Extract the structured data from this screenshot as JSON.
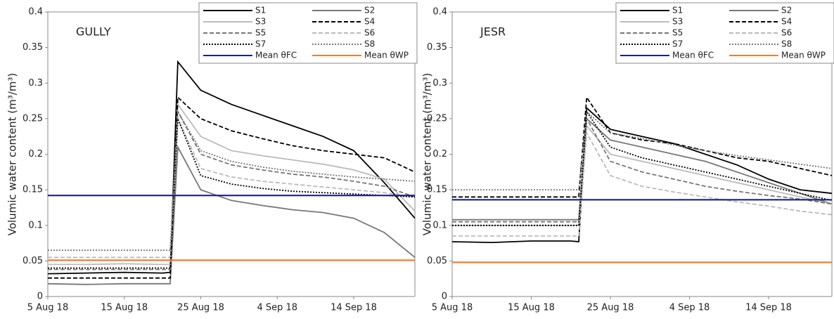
{
  "chart_data": [
    {
      "type": "line",
      "annotation": "GULLY",
      "y_label": "Volumic water content (m³/m³)",
      "x": [
        "2018-08-05",
        "2018-08-10",
        "2018-08-15",
        "2018-08-20",
        "2018-08-21",
        "2018-08-22",
        "2018-08-25",
        "2018-08-29",
        "2018-09-02",
        "2018-09-06",
        "2018-09-10",
        "2018-09-14",
        "2018-09-18",
        "2018-09-22"
      ],
      "xlim": [
        "2018-08-05",
        "2018-09-22"
      ],
      "xticks": [
        {
          "value": "2018-08-05",
          "label": "5 Aug 18"
        },
        {
          "value": "2018-08-15",
          "label": "15 Aug 18"
        },
        {
          "value": "2018-08-25",
          "label": "25 Aug 18"
        },
        {
          "value": "2018-09-04",
          "label": "4 Sep 18"
        },
        {
          "value": "2018-09-14",
          "label": "14 Sep 18"
        }
      ],
      "ylim": [
        0,
        0.4
      ],
      "yticks": [
        0,
        0.05,
        0.1,
        0.15,
        0.2,
        0.25,
        0.3,
        0.35,
        0.4
      ],
      "legend": "upper right",
      "series": [
        {
          "name": "S1",
          "color": "#000000",
          "style": "solid",
          "values": [
            0.032,
            0.033,
            0.034,
            0.033,
            0.034,
            0.33,
            0.29,
            0.27,
            0.255,
            0.24,
            0.225,
            0.205,
            0.16,
            0.11
          ]
        },
        {
          "name": "S2",
          "color": "#777777",
          "style": "solid",
          "values": [
            0.018,
            0.017,
            0.018,
            0.018,
            0.018,
            0.21,
            0.15,
            0.135,
            0.128,
            0.122,
            0.118,
            0.11,
            0.09,
            0.055
          ]
        },
        {
          "name": "S3",
          "color": "#bbbbbb",
          "style": "solid",
          "values": [
            0.045,
            0.045,
            0.046,
            0.045,
            0.045,
            0.27,
            0.225,
            0.205,
            0.198,
            0.192,
            0.186,
            0.178,
            0.165,
            0.12
          ]
        },
        {
          "name": "S4",
          "color": "#000000",
          "style": "dashed",
          "values": [
            0.026,
            0.026,
            0.026,
            0.026,
            0.026,
            0.28,
            0.25,
            0.233,
            0.222,
            0.212,
            0.205,
            0.2,
            0.195,
            0.175
          ]
        },
        {
          "name": "S5",
          "color": "#777777",
          "style": "dashed",
          "values": [
            0.038,
            0.038,
            0.038,
            0.038,
            0.038,
            0.26,
            0.2,
            0.185,
            0.178,
            0.172,
            0.168,
            0.162,
            0.155,
            0.14
          ]
        },
        {
          "name": "S6",
          "color": "#bbbbbb",
          "style": "dashed",
          "values": [
            0.055,
            0.055,
            0.055,
            0.055,
            0.055,
            0.25,
            0.18,
            0.168,
            0.162,
            0.158,
            0.154,
            0.15,
            0.146,
            0.14
          ]
        },
        {
          "name": "S7",
          "color": "#000000",
          "style": "dotted",
          "values": [
            0.04,
            0.04,
            0.04,
            0.04,
            0.04,
            0.25,
            0.17,
            0.158,
            0.152,
            0.148,
            0.146,
            0.144,
            0.142,
            0.14
          ]
        },
        {
          "name": "S8",
          "color": "#777777",
          "style": "dotted",
          "values": [
            0.065,
            0.065,
            0.065,
            0.065,
            0.065,
            0.26,
            0.205,
            0.19,
            0.182,
            0.176,
            0.172,
            0.168,
            0.165,
            0.162
          ]
        },
        {
          "name": "Mean θFC",
          "color": "#1a237e",
          "style": "solid",
          "values": [
            0.142,
            0.142,
            0.142,
            0.142,
            0.142,
            0.142,
            0.142,
            0.142,
            0.142,
            0.142,
            0.142,
            0.142,
            0.142,
            0.142
          ]
        },
        {
          "name": "Mean θWP",
          "color": "#f57c2a",
          "style": "solid",
          "values": [
            0.051,
            0.051,
            0.051,
            0.051,
            0.051,
            0.051,
            0.051,
            0.051,
            0.051,
            0.051,
            0.051,
            0.051,
            0.051,
            0.051
          ]
        }
      ]
    },
    {
      "type": "line",
      "annotation": "JESR",
      "y_label": "Volumic water content (m³/m³)",
      "x": [
        "2018-08-05",
        "2018-08-10",
        "2018-08-15",
        "2018-08-20",
        "2018-08-21",
        "2018-08-22",
        "2018-08-25",
        "2018-08-29",
        "2018-09-02",
        "2018-09-06",
        "2018-09-10",
        "2018-09-14",
        "2018-09-18",
        "2018-09-22"
      ],
      "xlim": [
        "2018-08-05",
        "2018-09-22"
      ],
      "xticks": [
        {
          "value": "2018-08-05",
          "label": "5 Aug 18"
        },
        {
          "value": "2018-08-15",
          "label": "15 Aug 18"
        },
        {
          "value": "2018-08-25",
          "label": "25 Aug 18"
        },
        {
          "value": "2018-09-04",
          "label": "4 Sep 18"
        },
        {
          "value": "2018-09-14",
          "label": "14 Sep 18"
        }
      ],
      "ylim": [
        0,
        0.4
      ],
      "yticks": [
        0,
        0.05,
        0.1,
        0.15,
        0.2,
        0.25,
        0.3,
        0.35,
        0.4
      ],
      "legend": "upper right",
      "series": [
        {
          "name": "S1",
          "color": "#000000",
          "style": "solid",
          "values": [
            0.077,
            0.076,
            0.078,
            0.078,
            0.077,
            0.265,
            0.235,
            0.225,
            0.215,
            0.2,
            0.185,
            0.165,
            0.15,
            0.145
          ]
        },
        {
          "name": "S2",
          "color": "#777777",
          "style": "solid",
          "values": [
            0.108,
            0.108,
            0.108,
            0.108,
            0.108,
            0.25,
            0.22,
            0.21,
            0.2,
            0.19,
            0.175,
            0.16,
            0.145,
            0.13
          ]
        },
        {
          "name": "S3",
          "color": "#bbbbbb",
          "style": "solid",
          "values": [
            0.1,
            0.1,
            0.1,
            0.1,
            0.1,
            0.24,
            0.2,
            0.19,
            0.18,
            0.17,
            0.16,
            0.15,
            0.14,
            0.13
          ]
        },
        {
          "name": "S4",
          "color": "#000000",
          "style": "dashed",
          "values": [
            0.14,
            0.14,
            0.14,
            0.14,
            0.14,
            0.28,
            0.23,
            0.22,
            0.215,
            0.205,
            0.195,
            0.19,
            0.18,
            0.17
          ]
        },
        {
          "name": "S5",
          "color": "#777777",
          "style": "dashed",
          "values": [
            0.105,
            0.105,
            0.105,
            0.105,
            0.105,
            0.25,
            0.19,
            0.175,
            0.165,
            0.155,
            0.148,
            0.142,
            0.137,
            0.13
          ]
        },
        {
          "name": "S6",
          "color": "#bbbbbb",
          "style": "dashed",
          "values": [
            0.085,
            0.085,
            0.085,
            0.085,
            0.085,
            0.23,
            0.17,
            0.155,
            0.147,
            0.14,
            0.133,
            0.127,
            0.12,
            0.115
          ]
        },
        {
          "name": "S7",
          "color": "#000000",
          "style": "dotted",
          "values": [
            0.1,
            0.1,
            0.1,
            0.1,
            0.1,
            0.26,
            0.21,
            0.195,
            0.185,
            0.175,
            0.165,
            0.155,
            0.145,
            0.135
          ]
        },
        {
          "name": "S8",
          "color": "#777777",
          "style": "dotted",
          "values": [
            0.15,
            0.15,
            0.15,
            0.15,
            0.15,
            0.26,
            0.23,
            0.222,
            0.213,
            0.205,
            0.198,
            0.192,
            0.186,
            0.18
          ]
        },
        {
          "name": "Mean θFC",
          "color": "#1a237e",
          "style": "solid",
          "values": [
            0.136,
            0.136,
            0.136,
            0.136,
            0.136,
            0.136,
            0.136,
            0.136,
            0.136,
            0.136,
            0.136,
            0.136,
            0.136,
            0.136
          ]
        },
        {
          "name": "Mean θWP",
          "color": "#f57c2a",
          "style": "solid",
          "values": [
            0.048,
            0.048,
            0.048,
            0.048,
            0.048,
            0.048,
            0.048,
            0.048,
            0.048,
            0.048,
            0.048,
            0.048,
            0.048,
            0.048
          ]
        }
      ]
    }
  ]
}
